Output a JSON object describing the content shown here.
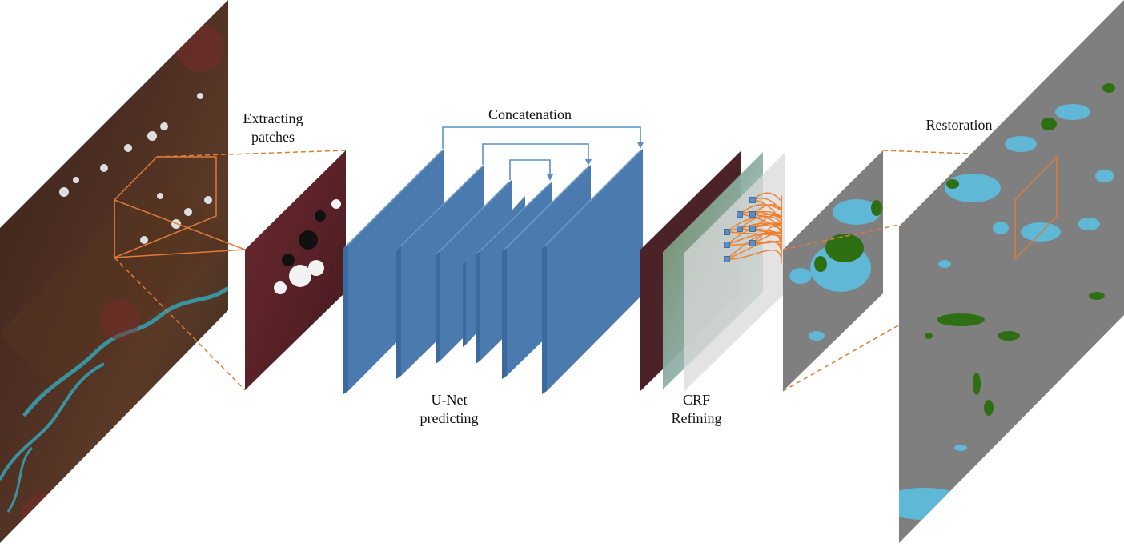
{
  "labels": {
    "extracting": [
      "Extracting",
      "patches"
    ],
    "concatenation": "Concatenation",
    "unet": [
      "U-Net",
      "predicting"
    ],
    "crf": [
      "CRF",
      "Refining"
    ],
    "restoration": "Restoration"
  },
  "colors": {
    "layer_fill": "#4a7aae",
    "layer_edge": "#6f9fd0",
    "skip_line": "#5b8fc8",
    "dashed": "#e07b39",
    "crf_links": "#ee7f2d",
    "node": "#5b8fc8",
    "gray_map": "#7f7f7f",
    "water": "#5fb8d6",
    "vegetation": "#2f6f14",
    "satellite_dark": "#3a2c20",
    "satellite_red": "#5c2424",
    "river": "#3a93a0"
  }
}
